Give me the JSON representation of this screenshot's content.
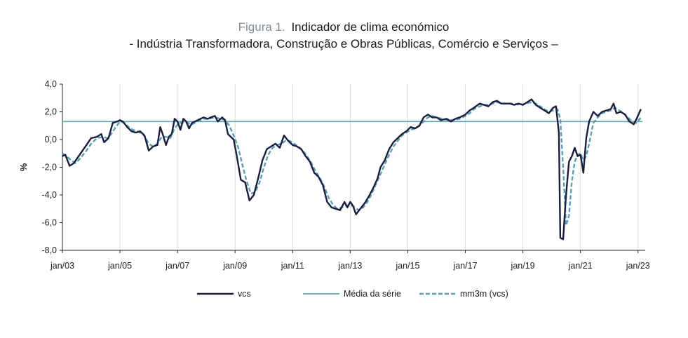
{
  "figure": {
    "prefix": "Figura 1.",
    "title": "Indicador de clima económico",
    "subtitle": "- Indústria Transformadora, Construção e Obras Públicas, Comércio e Serviços –"
  },
  "colors": {
    "vcs": "#1b1f3f",
    "media": "#5fa6b0",
    "mm3m": "#5b9fb0",
    "grid": "#d9d9d9",
    "axis": "#222222"
  },
  "chart_data": {
    "type": "line",
    "title": "Indicador de clima económico",
    "ylabel": "%",
    "xlabel": "",
    "ylim": [
      -8,
      4
    ],
    "yticks": [
      4,
      2,
      0,
      -2,
      -4,
      -6,
      -8
    ],
    "ytick_labels": [
      "4,0",
      "2,0",
      "0,0",
      "-2,0",
      "-4,0",
      "-6,0",
      "-8,0"
    ],
    "xlim": [
      2003.0,
      2023.25
    ],
    "xticks": [
      2003,
      2005,
      2007,
      2009,
      2011,
      2013,
      2015,
      2017,
      2019,
      2021,
      2023
    ],
    "xtick_labels": [
      "jan/03",
      "jan/05",
      "jan/07",
      "jan/09",
      "jan/11",
      "jan/13",
      "jan/15",
      "jan/17",
      "jan/19",
      "jan/21",
      "jan/23"
    ],
    "grid": "vertical",
    "legend": "bottom",
    "series": [
      {
        "name": "vcs",
        "style": "solid",
        "points": [
          [
            2003.0,
            -1.2
          ],
          [
            2003.1,
            -1.1
          ],
          [
            2003.25,
            -1.9
          ],
          [
            2003.4,
            -1.7
          ],
          [
            2003.6,
            -1.1
          ],
          [
            2003.8,
            -0.5
          ],
          [
            2004.0,
            0.1
          ],
          [
            2004.2,
            0.2
          ],
          [
            2004.35,
            0.4
          ],
          [
            2004.45,
            -0.2
          ],
          [
            2004.6,
            0.1
          ],
          [
            2004.75,
            1.2
          ],
          [
            2004.9,
            1.3
          ],
          [
            2005.0,
            1.4
          ],
          [
            2005.1,
            1.3
          ],
          [
            2005.25,
            0.9
          ],
          [
            2005.4,
            0.6
          ],
          [
            2005.55,
            0.5
          ],
          [
            2005.7,
            0.6
          ],
          [
            2005.85,
            0.3
          ],
          [
            2006.0,
            -0.8
          ],
          [
            2006.15,
            -0.5
          ],
          [
            2006.3,
            -0.4
          ],
          [
            2006.4,
            0.9
          ],
          [
            2006.5,
            0.3
          ],
          [
            2006.6,
            -0.4
          ],
          [
            2006.7,
            0.2
          ],
          [
            2006.8,
            0.4
          ],
          [
            2006.9,
            1.5
          ],
          [
            2007.0,
            1.3
          ],
          [
            2007.1,
            0.7
          ],
          [
            2007.2,
            1.5
          ],
          [
            2007.3,
            1.3
          ],
          [
            2007.4,
            0.8
          ],
          [
            2007.5,
            1.2
          ],
          [
            2007.7,
            1.4
          ],
          [
            2007.9,
            1.6
          ],
          [
            2008.05,
            1.5
          ],
          [
            2008.15,
            1.6
          ],
          [
            2008.3,
            1.7
          ],
          [
            2008.4,
            1.3
          ],
          [
            2008.55,
            1.6
          ],
          [
            2008.65,
            1.4
          ],
          [
            2008.75,
            0.4
          ],
          [
            2008.85,
            0.2
          ],
          [
            2008.95,
            0.0
          ],
          [
            2009.05,
            -1.1
          ],
          [
            2009.2,
            -2.9
          ],
          [
            2009.35,
            -3.1
          ],
          [
            2009.5,
            -4.4
          ],
          [
            2009.65,
            -4.0
          ],
          [
            2009.8,
            -2.8
          ],
          [
            2009.95,
            -1.5
          ],
          [
            2010.1,
            -0.7
          ],
          [
            2010.25,
            -0.5
          ],
          [
            2010.4,
            -0.3
          ],
          [
            2010.55,
            -0.6
          ],
          [
            2010.7,
            0.3
          ],
          [
            2010.85,
            -0.1
          ],
          [
            2011.0,
            -0.4
          ],
          [
            2011.15,
            -0.5
          ],
          [
            2011.3,
            -0.7
          ],
          [
            2011.45,
            -1.2
          ],
          [
            2011.6,
            -1.6
          ],
          [
            2011.75,
            -2.4
          ],
          [
            2011.9,
            -2.7
          ],
          [
            2012.05,
            -3.3
          ],
          [
            2012.2,
            -4.5
          ],
          [
            2012.35,
            -4.9
          ],
          [
            2012.5,
            -5.0
          ],
          [
            2012.65,
            -5.1
          ],
          [
            2012.8,
            -4.5
          ],
          [
            2012.9,
            -4.9
          ],
          [
            2013.0,
            -4.5
          ],
          [
            2013.1,
            -4.8
          ],
          [
            2013.2,
            -5.4
          ],
          [
            2013.35,
            -5.0
          ],
          [
            2013.5,
            -4.6
          ],
          [
            2013.65,
            -4.1
          ],
          [
            2013.8,
            -3.5
          ],
          [
            2013.95,
            -2.8
          ],
          [
            2014.05,
            -2.0
          ],
          [
            2014.2,
            -1.5
          ],
          [
            2014.35,
            -0.7
          ],
          [
            2014.5,
            -0.2
          ],
          [
            2014.65,
            0.1
          ],
          [
            2014.8,
            0.4
          ],
          [
            2014.95,
            0.6
          ],
          [
            2015.1,
            0.9
          ],
          [
            2015.25,
            0.8
          ],
          [
            2015.4,
            1.0
          ],
          [
            2015.55,
            1.6
          ],
          [
            2015.7,
            1.8
          ],
          [
            2015.85,
            1.6
          ],
          [
            2016.0,
            1.6
          ],
          [
            2016.15,
            1.4
          ],
          [
            2016.35,
            1.5
          ],
          [
            2016.5,
            1.3
          ],
          [
            2016.65,
            1.5
          ],
          [
            2016.8,
            1.6
          ],
          [
            2017.0,
            1.8
          ],
          [
            2017.15,
            2.1
          ],
          [
            2017.3,
            2.3
          ],
          [
            2017.5,
            2.6
          ],
          [
            2017.65,
            2.5
          ],
          [
            2017.8,
            2.4
          ],
          [
            2017.95,
            2.7
          ],
          [
            2018.1,
            2.8
          ],
          [
            2018.25,
            2.6
          ],
          [
            2018.4,
            2.6
          ],
          [
            2018.55,
            2.6
          ],
          [
            2018.7,
            2.5
          ],
          [
            2018.85,
            2.6
          ],
          [
            2019.0,
            2.5
          ],
          [
            2019.15,
            2.7
          ],
          [
            2019.3,
            2.9
          ],
          [
            2019.45,
            2.5
          ],
          [
            2019.6,
            2.3
          ],
          [
            2019.75,
            2.1
          ],
          [
            2019.9,
            1.9
          ],
          [
            2020.05,
            2.3
          ],
          [
            2020.15,
            2.4
          ],
          [
            2020.25,
            0.5
          ],
          [
            2020.3,
            -7.1
          ],
          [
            2020.4,
            -7.2
          ],
          [
            2020.5,
            -4.0
          ],
          [
            2020.6,
            -1.6
          ],
          [
            2020.7,
            -1.2
          ],
          [
            2020.8,
            -0.6
          ],
          [
            2020.9,
            -1.2
          ],
          [
            2021.0,
            -1.1
          ],
          [
            2021.1,
            -2.4
          ],
          [
            2021.2,
            0.1
          ],
          [
            2021.3,
            1.3
          ],
          [
            2021.45,
            2.0
          ],
          [
            2021.6,
            1.7
          ],
          [
            2021.75,
            2.0
          ],
          [
            2021.9,
            2.1
          ],
          [
            2022.05,
            2.2
          ],
          [
            2022.15,
            2.6
          ],
          [
            2022.25,
            1.9
          ],
          [
            2022.4,
            2.0
          ],
          [
            2022.55,
            1.8
          ],
          [
            2022.7,
            1.3
          ],
          [
            2022.85,
            1.1
          ],
          [
            2022.95,
            1.5
          ],
          [
            2023.1,
            2.2
          ]
        ]
      },
      {
        "name": "Média da série",
        "style": "solid",
        "value": 1.3
      },
      {
        "name": "mm3m (vcs)",
        "style": "dashed",
        "points": [
          [
            2003.0,
            -1.0
          ],
          [
            2003.15,
            -1.2
          ],
          [
            2003.3,
            -1.5
          ],
          [
            2003.45,
            -1.7
          ],
          [
            2003.6,
            -1.4
          ],
          [
            2003.8,
            -0.9
          ],
          [
            2004.0,
            -0.3
          ],
          [
            2004.2,
            0.1
          ],
          [
            2004.4,
            0.2
          ],
          [
            2004.55,
            0.1
          ],
          [
            2004.7,
            0.4
          ],
          [
            2004.85,
            0.9
          ],
          [
            2005.0,
            1.3
          ],
          [
            2005.15,
            1.2
          ],
          [
            2005.3,
            0.9
          ],
          [
            2005.45,
            0.7
          ],
          [
            2005.6,
            0.6
          ],
          [
            2005.8,
            0.4
          ],
          [
            2006.0,
            -0.3
          ],
          [
            2006.15,
            -0.5
          ],
          [
            2006.3,
            -0.3
          ],
          [
            2006.45,
            0.2
          ],
          [
            2006.6,
            0.2
          ],
          [
            2006.75,
            0.1
          ],
          [
            2006.9,
            0.8
          ],
          [
            2007.05,
            1.2
          ],
          [
            2007.2,
            1.2
          ],
          [
            2007.35,
            1.2
          ],
          [
            2007.5,
            1.1
          ],
          [
            2007.7,
            1.3
          ],
          [
            2007.9,
            1.5
          ],
          [
            2008.1,
            1.5
          ],
          [
            2008.3,
            1.6
          ],
          [
            2008.5,
            1.5
          ],
          [
            2008.65,
            1.4
          ],
          [
            2008.8,
            1.0
          ],
          [
            2008.95,
            0.3
          ],
          [
            2009.1,
            -0.5
          ],
          [
            2009.25,
            -1.8
          ],
          [
            2009.4,
            -3.0
          ],
          [
            2009.55,
            -3.9
          ],
          [
            2009.7,
            -3.8
          ],
          [
            2009.85,
            -3.1
          ],
          [
            2010.0,
            -2.0
          ],
          [
            2010.15,
            -1.1
          ],
          [
            2010.3,
            -0.6
          ],
          [
            2010.45,
            -0.4
          ],
          [
            2010.6,
            -0.3
          ],
          [
            2010.75,
            -0.1
          ],
          [
            2010.9,
            -0.1
          ],
          [
            2011.05,
            -0.3
          ],
          [
            2011.2,
            -0.5
          ],
          [
            2011.35,
            -0.8
          ],
          [
            2011.5,
            -1.2
          ],
          [
            2011.65,
            -1.7
          ],
          [
            2011.8,
            -2.3
          ],
          [
            2011.95,
            -2.8
          ],
          [
            2012.1,
            -3.4
          ],
          [
            2012.25,
            -4.2
          ],
          [
            2012.4,
            -4.7
          ],
          [
            2012.55,
            -5.0
          ],
          [
            2012.7,
            -4.9
          ],
          [
            2012.85,
            -4.8
          ],
          [
            2013.0,
            -4.7
          ],
          [
            2013.15,
            -4.9
          ],
          [
            2013.3,
            -5.1
          ],
          [
            2013.45,
            -4.9
          ],
          [
            2013.6,
            -4.5
          ],
          [
            2013.75,
            -3.9
          ],
          [
            2013.9,
            -3.2
          ],
          [
            2014.05,
            -2.5
          ],
          [
            2014.2,
            -1.8
          ],
          [
            2014.35,
            -1.1
          ],
          [
            2014.5,
            -0.5
          ],
          [
            2014.65,
            -0.1
          ],
          [
            2014.8,
            0.3
          ],
          [
            2014.95,
            0.5
          ],
          [
            2015.1,
            0.7
          ],
          [
            2015.25,
            0.8
          ],
          [
            2015.4,
            1.0
          ],
          [
            2015.55,
            1.3
          ],
          [
            2015.7,
            1.6
          ],
          [
            2015.85,
            1.7
          ],
          [
            2016.0,
            1.6
          ],
          [
            2016.2,
            1.5
          ],
          [
            2016.4,
            1.4
          ],
          [
            2016.6,
            1.4
          ],
          [
            2016.8,
            1.5
          ],
          [
            2017.0,
            1.7
          ],
          [
            2017.15,
            1.9
          ],
          [
            2017.3,
            2.2
          ],
          [
            2017.5,
            2.4
          ],
          [
            2017.65,
            2.5
          ],
          [
            2017.8,
            2.5
          ],
          [
            2017.95,
            2.6
          ],
          [
            2018.1,
            2.7
          ],
          [
            2018.3,
            2.6
          ],
          [
            2018.5,
            2.6
          ],
          [
            2018.7,
            2.6
          ],
          [
            2018.9,
            2.5
          ],
          [
            2019.1,
            2.6
          ],
          [
            2019.3,
            2.7
          ],
          [
            2019.45,
            2.6
          ],
          [
            2019.6,
            2.4
          ],
          [
            2019.75,
            2.2
          ],
          [
            2019.9,
            2.0
          ],
          [
            2020.05,
            2.1
          ],
          [
            2020.2,
            2.2
          ],
          [
            2020.3,
            1.5
          ],
          [
            2020.4,
            -2.0
          ],
          [
            2020.5,
            -6.2
          ],
          [
            2020.6,
            -5.5
          ],
          [
            2020.7,
            -3.0
          ],
          [
            2020.8,
            -1.6
          ],
          [
            2020.9,
            -1.1
          ],
          [
            2021.0,
            -1.0
          ],
          [
            2021.1,
            -1.5
          ],
          [
            2021.2,
            -1.2
          ],
          [
            2021.3,
            -0.3
          ],
          [
            2021.45,
            1.2
          ],
          [
            2021.6,
            1.6
          ],
          [
            2021.75,
            1.9
          ],
          [
            2021.9,
            2.0
          ],
          [
            2022.05,
            2.1
          ],
          [
            2022.2,
            2.3
          ],
          [
            2022.35,
            2.1
          ],
          [
            2022.5,
            1.9
          ],
          [
            2022.65,
            1.6
          ],
          [
            2022.8,
            1.3
          ],
          [
            2022.95,
            1.2
          ],
          [
            2023.1,
            1.6
          ]
        ]
      }
    ]
  }
}
